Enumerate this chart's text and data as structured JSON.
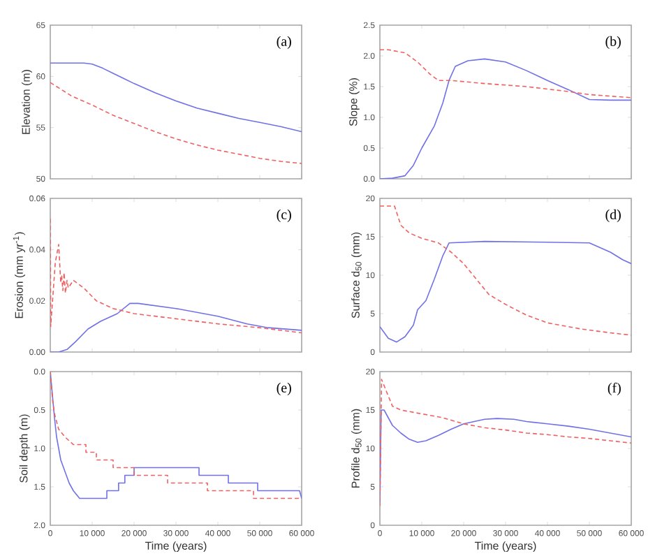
{
  "chart_data": [
    {
      "type": "line",
      "ylabel": "Elevation (m)",
      "annotations": [
        "(a)"
      ],
      "tick_labels": "y",
      "xlim": [
        0,
        60000
      ],
      "xticks": [
        0,
        10000,
        20000,
        30000,
        40000,
        50000,
        60000
      ],
      "ylim": [
        50,
        65
      ],
      "yticks": [
        50,
        55,
        60,
        65
      ],
      "series": [
        {
          "color": "#7070e8",
          "line_style": "solid",
          "x": [
            0,
            4000,
            8000,
            10000,
            12500,
            15000,
            17500,
            20000,
            25000,
            30000,
            35000,
            40000,
            45000,
            50000,
            55000,
            60000
          ],
          "values": [
            61.3,
            61.3,
            61.3,
            61.2,
            60.8,
            60.3,
            59.8,
            59.3,
            58.4,
            57.6,
            56.9,
            56.4,
            55.9,
            55.5,
            55.1,
            54.6
          ]
        },
        {
          "color": "#f06060",
          "line_style": "dashed",
          "x": [
            0,
            5000,
            10000,
            15000,
            20000,
            25000,
            30000,
            35000,
            40000,
            45000,
            50000,
            55000,
            60000
          ],
          "values": [
            59.4,
            58.1,
            57.2,
            56.2,
            55.4,
            54.6,
            53.9,
            53.3,
            52.8,
            52.4,
            52.0,
            51.7,
            51.5
          ]
        }
      ]
    },
    {
      "type": "line",
      "ylabel": "Slope (%)",
      "annotations": [
        "(b)"
      ],
      "tick_labels": "y",
      "xlim": [
        0,
        60000
      ],
      "xticks": [
        0,
        10000,
        20000,
        30000,
        40000,
        50000,
        60000
      ],
      "ylim": [
        0,
        2.5
      ],
      "yticks": [
        {
          "value": 0,
          "label": "0.0"
        },
        0.5,
        {
          "value": 1,
          "label": "1.0"
        },
        1.5,
        {
          "value": 2,
          "label": "2.0"
        },
        2.5
      ],
      "series": [
        {
          "color": "#7070e8",
          "line_style": "solid",
          "x": [
            0,
            3000,
            6000,
            8000,
            10000,
            13000,
            15000,
            16500,
            18000,
            21000,
            25000,
            30000,
            35000,
            40000,
            45000,
            50000,
            55000,
            60000
          ],
          "values": [
            0,
            0.01,
            0.05,
            0.22,
            0.5,
            0.86,
            1.23,
            1.6,
            1.83,
            1.92,
            1.95,
            1.9,
            1.76,
            1.6,
            1.45,
            1.29,
            1.28,
            1.28
          ]
        },
        {
          "color": "#f06060",
          "line_style": "dashed",
          "x": [
            0,
            2000,
            6000,
            9000,
            12000,
            14000,
            17000,
            25000,
            35000,
            45000,
            50000,
            60000
          ],
          "values": [
            2.1,
            2.1,
            2.05,
            1.9,
            1.7,
            1.6,
            1.6,
            1.55,
            1.5,
            1.42,
            1.37,
            1.32
          ]
        }
      ]
    },
    {
      "type": "line",
      "ylabel": "Erosion (mm yr$^{-1}$)",
      "annotations": [
        "(c)"
      ],
      "tick_labels": "y",
      "xlim": [
        0,
        60000
      ],
      "xticks": [
        0,
        10000,
        20000,
        30000,
        40000,
        50000,
        60000
      ],
      "ylim": [
        0,
        0.06
      ],
      "yticks": [
        {
          "value": 0,
          "label": "0.00"
        },
        0.02,
        0.04,
        0.06
      ],
      "series": [
        {
          "color": "#7070e8",
          "line_style": "solid",
          "x": [
            0,
            2000,
            4000,
            6000,
            9000,
            12000,
            16000,
            19000,
            21000,
            30000,
            40000,
            47000,
            52000,
            60000
          ],
          "values": [
            0,
            0,
            0.001,
            0.004,
            0.009,
            0.012,
            0.015,
            0.019,
            0.019,
            0.017,
            0.014,
            0.011,
            0.0095,
            0.0085
          ]
        },
        {
          "color": "#f06060",
          "line_style": "dashed",
          "x": [
            0,
            100,
            1200,
            2000,
            2500,
            2700,
            3000,
            3300,
            3600,
            4000,
            4300,
            5500,
            8000,
            11000,
            15000,
            20000,
            30000,
            40000,
            50000,
            60000
          ],
          "values": [
            0.052,
            0.01,
            0.035,
            0.042,
            0.027,
            0.03,
            0.024,
            0.031,
            0.023,
            0.028,
            0.025,
            0.028,
            0.025,
            0.02,
            0.017,
            0.015,
            0.013,
            0.011,
            0.0095,
            0.0075
          ]
        }
      ]
    },
    {
      "type": "line",
      "ylabel": "Surface d$_{50}$ (mm)",
      "annotations": [
        "(d)"
      ],
      "tick_labels": "y",
      "xlim": [
        0,
        60000
      ],
      "xticks": [
        0,
        10000,
        20000,
        30000,
        40000,
        50000,
        60000
      ],
      "ylim": [
        0,
        20
      ],
      "yticks": [
        0,
        5,
        10,
        15,
        20
      ],
      "series": [
        {
          "color": "#7070e8",
          "line_style": "solid",
          "x": [
            0,
            2000,
            4000,
            6000,
            8000,
            9000,
            11000,
            13000,
            15000,
            16500,
            25000,
            40000,
            50000,
            55000,
            58000,
            60000
          ],
          "values": [
            3.3,
            1.8,
            1.3,
            2,
            3.5,
            5.5,
            6.7,
            9.5,
            12.5,
            14.2,
            14.4,
            14.3,
            14.2,
            13.0,
            12.0,
            11.5
          ]
        },
        {
          "color": "#f06060",
          "line_style": "dashed",
          "x": [
            0,
            3500,
            5000,
            7000,
            10000,
            14000,
            17000,
            20000,
            23000,
            26000,
            30000,
            35000,
            40000,
            48000,
            55000,
            60000
          ],
          "values": [
            19,
            19,
            16.5,
            15.5,
            14.8,
            14.2,
            13.0,
            11.5,
            9.5,
            7.5,
            6.2,
            4.8,
            3.8,
            3.0,
            2.5,
            2.2
          ]
        }
      ]
    },
    {
      "type": "line",
      "ylabel": "Soil depth (m)",
      "xlabel": "Time (years)",
      "annotations": [
        "(e)"
      ],
      "xlim": [
        0,
        60000
      ],
      "xticks": [
        0,
        {
          "value": 10000,
          "label": "10 000"
        },
        {
          "value": 20000,
          "label": "20 000"
        },
        {
          "value": 30000,
          "label": "30 000"
        },
        {
          "value": 40000,
          "label": "40 000"
        },
        {
          "value": 50000,
          "label": "50 000"
        },
        {
          "value": 60000,
          "label": "60 000"
        }
      ],
      "ylim": [
        2,
        0
      ],
      "yticks": [
        {
          "value": 0,
          "label": "0.0"
        },
        0.5,
        {
          "value": 1,
          "label": "1.0"
        },
        1.5,
        {
          "value": 2,
          "label": "2.0"
        }
      ],
      "series": [
        {
          "color": "#7070e8",
          "line_style": "solid",
          "x": [
            0,
            500,
            1000,
            1500,
            2500,
            3500,
            4500,
            5500,
            7000,
            13500,
            13500,
            16300,
            16300,
            17800,
            17800,
            20000,
            20000,
            35500,
            35500,
            42500,
            42500,
            49500,
            49500,
            59500,
            60000
          ],
          "values": [
            0,
            0.3,
            0.6,
            0.85,
            1.15,
            1.3,
            1.45,
            1.55,
            1.65,
            1.65,
            1.55,
            1.55,
            1.45,
            1.45,
            1.35,
            1.35,
            1.25,
            1.25,
            1.35,
            1.35,
            1.45,
            1.45,
            1.55,
            1.55,
            1.65
          ]
        },
        {
          "color": "#f06060",
          "line_style": "dashed",
          "x": [
            0,
            500,
            1000,
            2000,
            3500,
            5500,
            8500,
            8500,
            11000,
            11000,
            15000,
            15000,
            20000,
            20000,
            28000,
            28000,
            37500,
            37500,
            48500,
            48500,
            60000
          ],
          "values": [
            0,
            0.35,
            0.55,
            0.75,
            0.85,
            0.95,
            0.95,
            1.05,
            1.05,
            1.15,
            1.15,
            1.25,
            1.25,
            1.35,
            1.35,
            1.45,
            1.45,
            1.55,
            1.55,
            1.65,
            1.65
          ]
        }
      ]
    },
    {
      "type": "line",
      "ylabel": "Profile d$_{50}$ (mm)",
      "xlabel": "Time (years)",
      "annotations": [
        "(f)"
      ],
      "xlim": [
        0,
        60000
      ],
      "xticks": [
        0,
        {
          "value": 10000,
          "label": "10 000"
        },
        {
          "value": 20000,
          "label": "20 000"
        },
        {
          "value": 30000,
          "label": "30 000"
        },
        {
          "value": 40000,
          "label": "40 000"
        },
        {
          "value": 50000,
          "label": "50 000"
        },
        {
          "value": 60000,
          "label": "60 000"
        }
      ],
      "ylim": [
        0,
        20
      ],
      "yticks": [
        0,
        5,
        10,
        15,
        20
      ],
      "series": [
        {
          "color": "#7070e8",
          "line_style": "solid",
          "x": [
            0,
            300,
            1000,
            3000,
            5000,
            7000,
            9000,
            11000,
            14000,
            17000,
            20000,
            25000,
            28000,
            32000,
            35000,
            40000,
            45000,
            50000,
            55000,
            60000
          ],
          "values": [
            3,
            15,
            15,
            13,
            12,
            11.2,
            10.8,
            11,
            11.7,
            12.5,
            13.2,
            13.8,
            13.9,
            13.8,
            13.5,
            13.2,
            12.9,
            12.5,
            12.0,
            11.5
          ]
        },
        {
          "color": "#f06060",
          "line_style": "dashed",
          "x": [
            0,
            400,
            1500,
            3000,
            5000,
            10000,
            15000,
            20000,
            25000,
            30000,
            35000,
            40000,
            45000,
            50000,
            55000,
            60000
          ],
          "values": [
            2.5,
            19,
            17.5,
            15.5,
            15,
            14.5,
            14,
            13.2,
            12.7,
            12.4,
            12.0,
            11.8,
            11.5,
            11.3,
            11.0,
            10.7
          ]
        }
      ]
    }
  ]
}
